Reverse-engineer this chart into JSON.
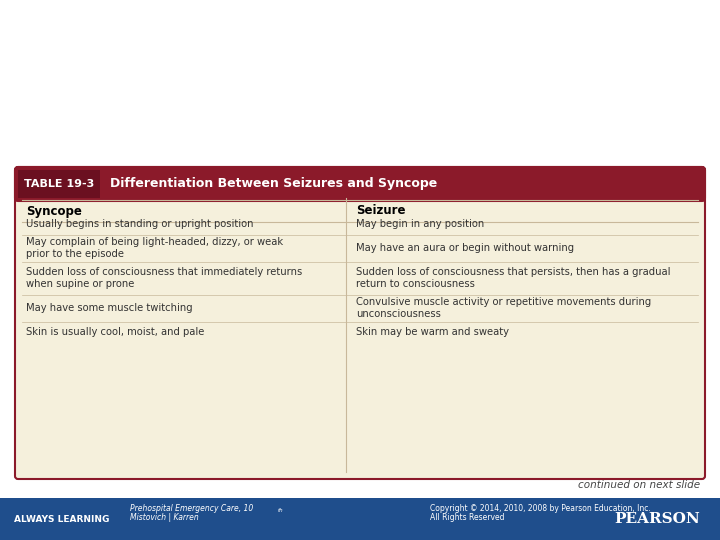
{
  "title_label": "TABLE 19-3",
  "title_text": "Differentiation Between Seizures and Syncope",
  "col1_header": "Syncope",
  "col2_header": "Seizure",
  "rows": [
    [
      "Usually begins in standing or upright position",
      "May begin in any position"
    ],
    [
      "May complain of being light-headed, dizzy, or weak\nprior to the episode",
      "May have an aura or begin without warning"
    ],
    [
      "Sudden loss of consciousness that immediately returns\nwhen supine or prone",
      "Sudden loss of consciousness that persists, then has a gradual\nreturn to consciousness"
    ],
    [
      "May have some muscle twitching",
      "Convulsive muscle activity or repetitive movements during\nunconsciousness"
    ],
    [
      "Skin is usually cool, moist, and pale",
      "Skin may be warm and sweaty"
    ]
  ],
  "bg_color": "#FFFFFF",
  "table_bg": "#F5F0DC",
  "header_bg": "#8B1A2A",
  "header_text_color": "#FFFFFF",
  "col_header_bg": "#F5F0DC",
  "border_color": "#8B1A2A",
  "divider_color": "#C8B89A",
  "col_header_text_color": "#000000",
  "row_text_color": "#333333",
  "footer_bg": "#1F4E8C",
  "footer_text_color": "#FFFFFF",
  "continued_text": "continued on next slide",
  "always_learning": "ALWAYS LEARNING",
  "book_title": "Prehospital Emergency Care, 10",
  "book_edition": "th",
  "book_authors": " edition\nMistovich | Karren",
  "copyright": "Copyright © 2014, 2010, 2008 by Pearson Education, Inc.\nAll Rights Reserved",
  "pearson": "PEARSON"
}
